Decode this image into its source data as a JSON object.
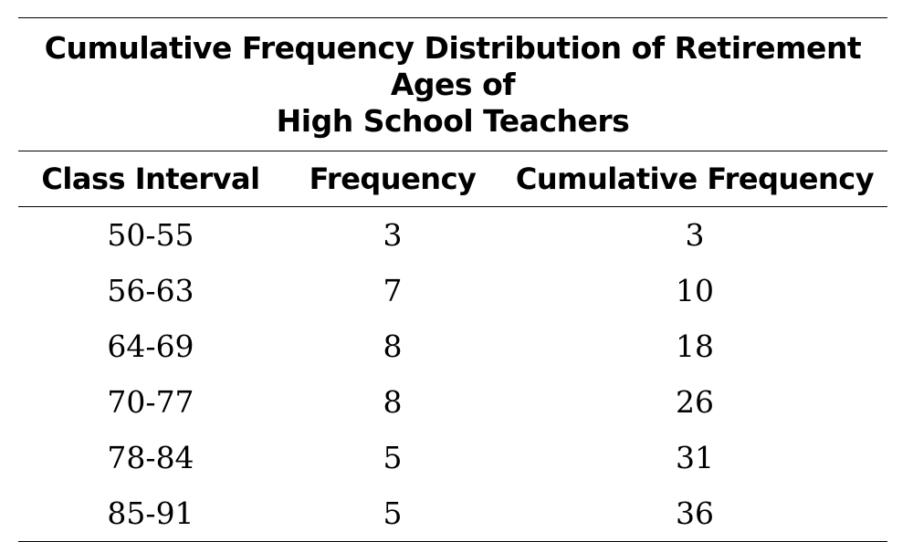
{
  "table": {
    "caption_lines": [
      "Cumulative Frequency Distribution of Retirement Ages of",
      "High School Teachers"
    ],
    "headers": [
      "Class Interval",
      "Frequency",
      "Cumulative Frequency"
    ],
    "rows": [
      [
        "50-55",
        "3",
        "3"
      ],
      [
        "56-63",
        "7",
        "10"
      ],
      [
        "64-69",
        "8",
        "18"
      ],
      [
        "70-77",
        "8",
        "26"
      ],
      [
        "78-84",
        "5",
        "31"
      ],
      [
        "85-91",
        "5",
        "36"
      ]
    ]
  }
}
